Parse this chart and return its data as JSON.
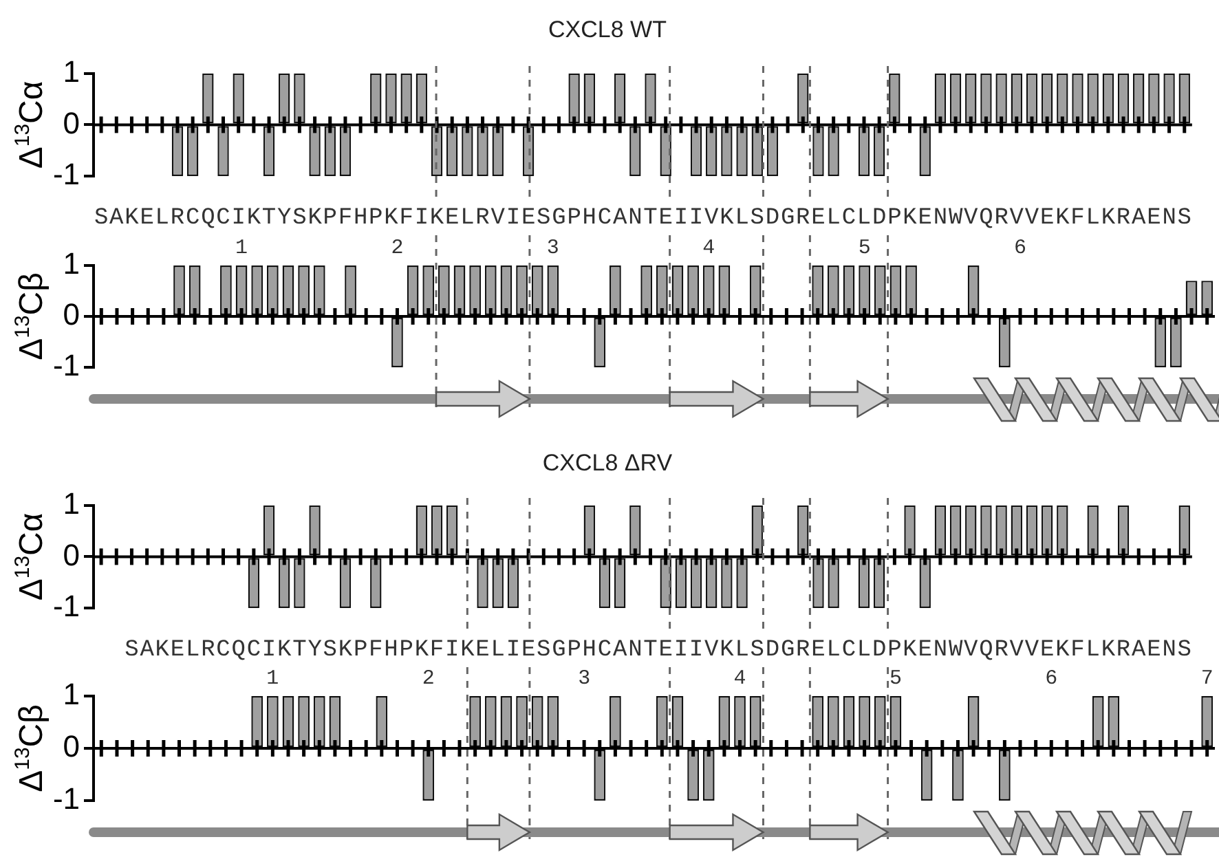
{
  "chart_data": [
    {
      "type": "bar",
      "title": "CXCL8 WT",
      "ylabel": "Δ$^{13}$Cα",
      "color": "#a0a0a0",
      "categories": [
        "S",
        "A",
        "K",
        "E",
        "L",
        "R",
        "C",
        "Q",
        "C",
        "I",
        "K",
        "T",
        "Y",
        "S",
        "K",
        "P",
        "F",
        "H",
        "P",
        "K",
        "F",
        "I",
        "K",
        "E",
        "L",
        "R",
        "V",
        "I",
        "E",
        "S",
        "G",
        "P",
        "H",
        "C",
        "A",
        "N",
        "T",
        "E",
        "I",
        "I",
        "V",
        "K",
        "L",
        "S",
        "D",
        "G",
        "R",
        "E",
        "L",
        "C",
        "L",
        "D",
        "P",
        "K",
        "E",
        "N",
        "W",
        "V",
        "Q",
        "R",
        "V",
        "V",
        "E",
        "K",
        "F",
        "L",
        "K",
        "R",
        "A",
        "E",
        "N",
        "S"
      ],
      "values": [
        0,
        0,
        0,
        0,
        0,
        -1,
        -1,
        1,
        -1,
        1,
        0,
        -1,
        1,
        1,
        -1,
        -1,
        -1,
        0,
        1,
        1,
        1,
        1,
        -1,
        -1,
        -1,
        -1,
        -1,
        0,
        -1,
        0,
        0,
        1,
        1,
        0,
        1,
        -1,
        1,
        -1,
        0,
        -1,
        -1,
        -1,
        -1,
        -1,
        -1,
        0,
        1,
        -1,
        -1,
        0,
        -1,
        -1,
        1,
        0,
        -1,
        1,
        1,
        1,
        1,
        1,
        1,
        1,
        1,
        1,
        1,
        1,
        1,
        1,
        1,
        1,
        1,
        1
      ],
      "ylim": [
        -1,
        1
      ],
      "yticks": [
        -1,
        0,
        1
      ],
      "legend": false
    },
    {
      "type": "bar",
      "ylabel": "Δ$^{13}$Cβ",
      "color": "#a0a0a0",
      "x": [
        0.1,
        0.2,
        0.3,
        0.4,
        0.5,
        0.6,
        0.7,
        0.8,
        0.9,
        1.0,
        1.1,
        1.2,
        1.3,
        1.4,
        1.5,
        1.6,
        1.7,
        1.8,
        1.9,
        2.0,
        2.1,
        2.2,
        2.3,
        2.4,
        2.5,
        2.6,
        2.7,
        2.8,
        2.9,
        3.0,
        3.1,
        3.2,
        3.3,
        3.4,
        3.5,
        3.6,
        3.7,
        3.8,
        3.9,
        4.0,
        4.1,
        4.2,
        4.3,
        4.4,
        4.5,
        4.6,
        4.7,
        4.8,
        4.9,
        5.0,
        5.1,
        5.2,
        5.3,
        5.4,
        5.5,
        5.6,
        5.7,
        5.8,
        5.9,
        6.0,
        6.1,
        6.2,
        6.3,
        6.4,
        6.5,
        6.6,
        6.7,
        6.8,
        6.9,
        7.0,
        7.1,
        7.2
      ],
      "values": [
        0,
        0,
        0,
        0,
        0,
        1,
        1,
        0,
        1,
        1,
        1,
        1,
        1,
        1,
        1,
        0,
        1,
        0,
        0,
        -1,
        1,
        1,
        1,
        1,
        1,
        1,
        1,
        1,
        1,
        1,
        0,
        0,
        -1,
        1,
        0,
        1,
        1,
        1,
        1,
        1,
        1,
        0,
        1,
        0,
        0,
        0,
        1,
        1,
        1,
        1,
        1,
        1,
        1,
        0,
        0,
        0,
        1,
        0,
        -1,
        0,
        0,
        0,
        0,
        0,
        0,
        0,
        0,
        0,
        -1,
        -1,
        0.7,
        0.7
      ],
      "xlim": [
        0.05,
        7.25
      ],
      "ylim": [
        -1,
        1
      ],
      "yticks": [
        -1,
        0,
        1
      ],
      "xticks": [
        {
          "value": 0.1,
          "label": null
        },
        {
          "value": 0.2,
          "label": null
        },
        {
          "value": 0.3,
          "label": null
        },
        {
          "value": 0.4,
          "label": null
        },
        {
          "value": 0.5,
          "label": null
        },
        {
          "value": 0.6,
          "label": null
        },
        {
          "value": 0.7,
          "label": null
        },
        {
          "value": 0.8,
          "label": null
        },
        {
          "value": 0.9,
          "label": null
        },
        1,
        {
          "value": 1.1,
          "label": null
        },
        {
          "value": 1.2,
          "label": null
        },
        {
          "value": 1.3,
          "label": null
        },
        {
          "value": 1.4,
          "label": null
        },
        {
          "value": 1.5,
          "label": null
        },
        {
          "value": 1.6,
          "label": null
        },
        {
          "value": 1.7,
          "label": null
        },
        {
          "value": 1.8,
          "label": null
        },
        {
          "value": 1.9,
          "label": null
        },
        2,
        {
          "value": 2.1,
          "label": null
        },
        {
          "value": 2.2,
          "label": null
        },
        {
          "value": 2.3,
          "label": null
        },
        {
          "value": 2.4,
          "label": null
        },
        {
          "value": 2.5,
          "label": null
        },
        {
          "value": 2.6,
          "label": null
        },
        {
          "value": 2.7,
          "label": null
        },
        {
          "value": 2.8,
          "label": null
        },
        {
          "value": 2.9,
          "label": null
        },
        3,
        {
          "value": 3.1,
          "label": null
        },
        {
          "value": 3.2,
          "label": null
        },
        {
          "value": 3.3,
          "label": null
        },
        {
          "value": 3.4,
          "label": null
        },
        {
          "value": 3.5,
          "label": null
        },
        {
          "value": 3.6,
          "label": null
        },
        {
          "value": 3.7,
          "label": null
        },
        {
          "value": 3.8,
          "label": null
        },
        {
          "value": 3.9,
          "label": null
        },
        4,
        {
          "value": 4.1,
          "label": null
        },
        {
          "value": 4.2,
          "label": null
        },
        {
          "value": 4.3,
          "label": null
        },
        {
          "value": 4.4,
          "label": null
        },
        {
          "value": 4.5,
          "label": null
        },
        {
          "value": 4.6,
          "label": null
        },
        {
          "value": 4.7,
          "label": null
        },
        {
          "value": 4.8,
          "label": null
        },
        {
          "value": 4.9,
          "label": null
        },
        5,
        {
          "value": 5.1,
          "label": null
        },
        {
          "value": 5.2,
          "label": null
        },
        {
          "value": 5.3,
          "label": null
        },
        {
          "value": 5.4,
          "label": null
        },
        {
          "value": 5.5,
          "label": null
        },
        {
          "value": 5.6,
          "label": null
        },
        {
          "value": 5.7,
          "label": null
        },
        {
          "value": 5.8,
          "label": null
        },
        {
          "value": 5.9,
          "label": null
        },
        6,
        {
          "value": 6.1,
          "label": null
        },
        {
          "value": 6.2,
          "label": null
        },
        {
          "value": 6.3,
          "label": null
        },
        {
          "value": 6.4,
          "label": null
        },
        {
          "value": 6.5,
          "label": null
        },
        {
          "value": 6.6,
          "label": null
        },
        {
          "value": 6.7,
          "label": null
        },
        {
          "value": 6.8,
          "label": null
        },
        {
          "value": 6.9,
          "label": null
        },
        {
          "value": 7.0,
          "label": null
        },
        {
          "value": 7.1,
          "label": null
        },
        {
          "value": 7.2,
          "label": null
        }
      ],
      "ref_lines": [
        {
          "axis": "x",
          "value": 2.25,
          "line_style": "dashed"
        },
        {
          "axis": "x",
          "value": 2.85,
          "line_style": "dashed"
        },
        {
          "axis": "x",
          "value": 3.75,
          "line_style": "dashed"
        },
        {
          "axis": "x",
          "value": 4.35,
          "line_style": "dashed"
        },
        {
          "axis": "x",
          "value": 4.65,
          "line_style": "dashed"
        },
        {
          "axis": "x",
          "value": 5.15,
          "line_style": "dashed"
        }
      ],
      "legend": false
    },
    {
      "type": "bar",
      "title": "CXCL8 ΔRV",
      "ylabel": "Δ$^{13}$Cα",
      "color": "#a0a0a0",
      "categories": [
        null,
        null,
        "S",
        "A",
        "K",
        "E",
        "L",
        "R",
        "C",
        "Q",
        "C",
        "I",
        "K",
        "T",
        "Y",
        "S",
        "K",
        "P",
        "F",
        "H",
        "P",
        "K",
        "F",
        "I",
        "K",
        "E",
        "L",
        "I",
        "E",
        "S",
        "G",
        "P",
        "H",
        "C",
        "A",
        "N",
        "T",
        "E",
        "I",
        "I",
        "V",
        "K",
        "L",
        "S",
        "D",
        "G",
        "R",
        "E",
        "L",
        "C",
        "L",
        "D",
        "P",
        "K",
        "E",
        "N",
        "W",
        "V",
        "Q",
        "R",
        "V",
        "V",
        "E",
        "K",
        "F",
        "L",
        "K",
        "R",
        "A",
        "E",
        "N",
        "S"
      ],
      "values": [
        null,
        null,
        0,
        0,
        0,
        0,
        0,
        0,
        0,
        0,
        -1,
        1,
        -1,
        -1,
        1,
        0,
        -1,
        0,
        -1,
        0,
        0,
        1,
        1,
        1,
        0,
        -1,
        -1,
        -1,
        0,
        0,
        0,
        0,
        1,
        -1,
        -1,
        1,
        0,
        -1,
        -1,
        -1,
        -1,
        -1,
        -1,
        1,
        0,
        0,
        1,
        -1,
        -1,
        0,
        -1,
        -1,
        0,
        1,
        -1,
        1,
        1,
        1,
        1,
        1,
        1,
        1,
        1,
        1,
        0,
        1,
        0,
        1,
        0,
        0,
        0,
        1
      ],
      "ylim": [
        -1,
        1
      ],
      "yticks": [
        -1,
        0,
        1
      ],
      "legend": false
    },
    {
      "type": "bar",
      "ylabel": "Δ$^{13}$Cβ",
      "color": "#a0a0a0",
      "x": [
        0.1,
        0.2,
        0.3,
        0.4,
        0.5,
        0.6,
        0.7,
        0.8,
        0.9,
        1.0,
        1.1,
        1.2,
        1.3,
        1.4,
        1.5,
        1.6,
        1.7,
        1.8,
        1.9,
        2.0,
        2.1,
        2.2,
        2.3,
        2.4,
        2.5,
        2.6,
        2.7,
        2.8,
        2.9,
        3.0,
        3.1,
        3.2,
        3.3,
        3.4,
        3.5,
        3.6,
        3.7,
        3.8,
        3.9,
        4.0,
        4.1,
        4.2,
        4.3,
        4.4,
        4.5,
        4.6,
        4.7,
        4.8,
        4.9,
        5.0,
        5.1,
        5.2,
        5.3,
        5.4,
        5.5,
        5.6,
        5.7,
        5.8,
        5.9,
        6.0,
        6.1,
        6.2,
        6.3,
        6.4,
        6.5,
        6.6,
        6.7,
        6.8,
        6.9,
        7.0
      ],
      "values": [
        0,
        0,
        0,
        0,
        0,
        0,
        0,
        0,
        1,
        1,
        1,
        1,
        1,
        1,
        0,
        0,
        1,
        0,
        0,
        -1,
        0,
        0,
        1,
        1,
        1,
        1,
        1,
        1,
        0,
        0,
        -1,
        1,
        0,
        0,
        1,
        1,
        -1,
        -1,
        1,
        1,
        1,
        0,
        0,
        0,
        1,
        1,
        1,
        1,
        1,
        1,
        0,
        -1,
        0,
        -1,
        1,
        0,
        -1,
        0,
        0,
        0,
        0,
        0,
        1,
        1,
        0,
        0,
        0,
        0,
        0,
        1
      ],
      "xlim": [
        -0.15,
        7.05
      ],
      "ylim": [
        -1,
        1
      ],
      "yticks": [
        -1,
        0,
        1
      ],
      "xticks": [
        {
          "value": -0.1,
          "label": null
        },
        {
          "value": 0,
          "label": null
        },
        {
          "value": 0.1,
          "label": null
        },
        {
          "value": 0.2,
          "label": null
        },
        {
          "value": 0.3,
          "label": null
        },
        {
          "value": 0.4,
          "label": null
        },
        {
          "value": 0.5,
          "label": null
        },
        {
          "value": 0.6,
          "label": null
        },
        {
          "value": 0.7,
          "label": null
        },
        {
          "value": 0.8,
          "label": null
        },
        {
          "value": 0.9,
          "label": null
        },
        1,
        {
          "value": 1.1,
          "label": null
        },
        {
          "value": 1.2,
          "label": null
        },
        {
          "value": 1.3,
          "label": null
        },
        {
          "value": 1.4,
          "label": null
        },
        {
          "value": 1.5,
          "label": null
        },
        {
          "value": 1.6,
          "label": null
        },
        {
          "value": 1.7,
          "label": null
        },
        {
          "value": 1.8,
          "label": null
        },
        {
          "value": 1.9,
          "label": null
        },
        2,
        {
          "value": 2.1,
          "label": null
        },
        {
          "value": 2.2,
          "label": null
        },
        {
          "value": 2.3,
          "label": null
        },
        {
          "value": 2.4,
          "label": null
        },
        {
          "value": 2.5,
          "label": null
        },
        {
          "value": 2.6,
          "label": null
        },
        {
          "value": 2.7,
          "label": null
        },
        {
          "value": 2.8,
          "label": null
        },
        {
          "value": 2.9,
          "label": null
        },
        3,
        {
          "value": 3.1,
          "label": null
        },
        {
          "value": 3.2,
          "label": null
        },
        {
          "value": 3.3,
          "label": null
        },
        {
          "value": 3.4,
          "label": null
        },
        {
          "value": 3.5,
          "label": null
        },
        {
          "value": 3.6,
          "label": null
        },
        {
          "value": 3.7,
          "label": null
        },
        {
          "value": 3.8,
          "label": null
        },
        {
          "value": 3.9,
          "label": null
        },
        4,
        {
          "value": 4.1,
          "label": null
        },
        {
          "value": 4.2,
          "label": null
        },
        {
          "value": 4.3,
          "label": null
        },
        {
          "value": 4.4,
          "label": null
        },
        {
          "value": 4.5,
          "label": null
        },
        {
          "value": 4.6,
          "label": null
        },
        {
          "value": 4.7,
          "label": null
        },
        {
          "value": 4.8,
          "label": null
        },
        {
          "value": 4.9,
          "label": null
        },
        5,
        {
          "value": 5.1,
          "label": null
        },
        {
          "value": 5.2,
          "label": null
        },
        {
          "value": 5.3,
          "label": null
        },
        {
          "value": 5.4,
          "label": null
        },
        {
          "value": 5.5,
          "label": null
        },
        {
          "value": 5.6,
          "label": null
        },
        {
          "value": 5.7,
          "label": null
        },
        {
          "value": 5.8,
          "label": null
        },
        {
          "value": 5.9,
          "label": null
        },
        6,
        {
          "value": 6.1,
          "label": null
        },
        {
          "value": 6.2,
          "label": null
        },
        {
          "value": 6.3,
          "label": null
        },
        {
          "value": 6.4,
          "label": null
        },
        {
          "value": 6.5,
          "label": null
        },
        {
          "value": 6.6,
          "label": null
        },
        {
          "value": 6.7,
          "label": null
        },
        {
          "value": 6.8,
          "label": null
        },
        {
          "value": 6.9,
          "label": null
        },
        7
      ],
      "ref_lines": [
        {
          "axis": "x",
          "value": 2.25,
          "line_style": "dashed"
        },
        {
          "axis": "x",
          "value": 2.65,
          "line_style": "dashed"
        },
        {
          "axis": "x",
          "value": 3.55,
          "line_style": "dashed"
        },
        {
          "axis": "x",
          "value": 4.15,
          "line_style": "dashed"
        },
        {
          "axis": "x",
          "value": 4.45,
          "line_style": "dashed"
        },
        {
          "axis": "x",
          "value": 4.95,
          "line_style": "dashed"
        }
      ],
      "legend": false
    }
  ]
}
